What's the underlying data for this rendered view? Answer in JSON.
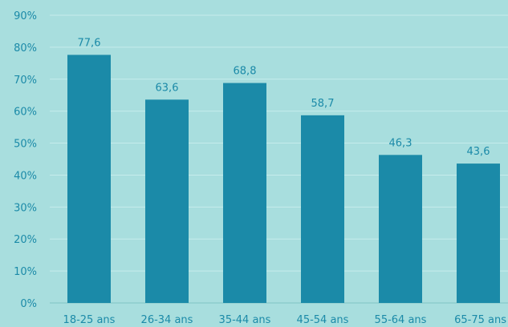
{
  "chart_data": {
    "type": "bar",
    "categories": [
      "18-25 ans",
      "26-34 ans",
      "35-44 ans",
      "45-54 ans",
      "55-64 ans",
      "65-75 ans"
    ],
    "values": [
      77.6,
      63.6,
      68.8,
      58.7,
      46.3,
      43.6
    ],
    "data_labels": [
      "77,6",
      "63,6",
      "68,8",
      "58,7",
      "46,3",
      "43,6"
    ],
    "yticks": [
      "0%",
      "10%",
      "20%",
      "30%",
      "40%",
      "50%",
      "60%",
      "70%",
      "80%",
      "90%"
    ],
    "ylim": [
      0,
      90
    ],
    "grid": true,
    "colors": {
      "bar": "#1b8aa8",
      "background": "#a8dede",
      "text": "#1b8aa8"
    }
  }
}
